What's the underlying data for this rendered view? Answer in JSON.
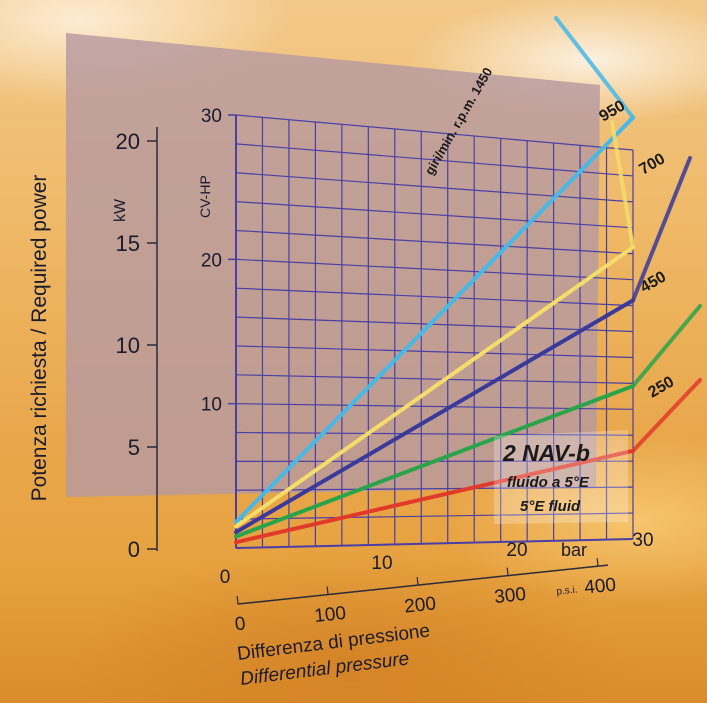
{
  "chart_data": {
    "type": "line",
    "title": "2 NAV-b",
    "subtitle_lines": [
      "fluido a 5°E",
      "5°E fluid"
    ],
    "ylabel": "Potenza richiesta / Required power",
    "y_unit_left": "kW",
    "y_unit_right": "CV-HP",
    "xlabel_lines": [
      "Differenza di pressione",
      "Differential pressure"
    ],
    "x_unit_bar": "bar",
    "x_unit_psi": "p.s.i.",
    "x_bar_ticks": [
      "0",
      "10",
      "20",
      "30"
    ],
    "x_psi_ticks": [
      "0",
      "100",
      "200",
      "300",
      "400"
    ],
    "kw_ticks": [
      "0",
      "5",
      "10",
      "15",
      "20"
    ],
    "hp_ticks": [
      "10",
      "20",
      "30"
    ],
    "xlim": [
      0,
      30
    ],
    "ylim_hp": [
      0,
      30
    ],
    "grid": true,
    "curve_label_prefix": "giri/min. r.p.m.",
    "series": [
      {
        "name": "1450",
        "color": "#45b9e8",
        "x": [
          0,
          30
        ],
        "y": [
          1.8,
          32.5
        ]
      },
      {
        "name": "950",
        "color": "#f4dd6a",
        "x": [
          0,
          30
        ],
        "y": [
          1.5,
          22.5
        ]
      },
      {
        "name": "700",
        "color": "#3a3a9a",
        "x": [
          0,
          30
        ],
        "y": [
          1.1,
          18.4
        ]
      },
      {
        "name": "450",
        "color": "#2aa44a",
        "x": [
          0,
          30
        ],
        "y": [
          0.8,
          11.8
        ]
      },
      {
        "name": "250",
        "color": "#e23a2a",
        "x": [
          0,
          30
        ],
        "y": [
          0.4,
          6.8
        ]
      }
    ]
  }
}
